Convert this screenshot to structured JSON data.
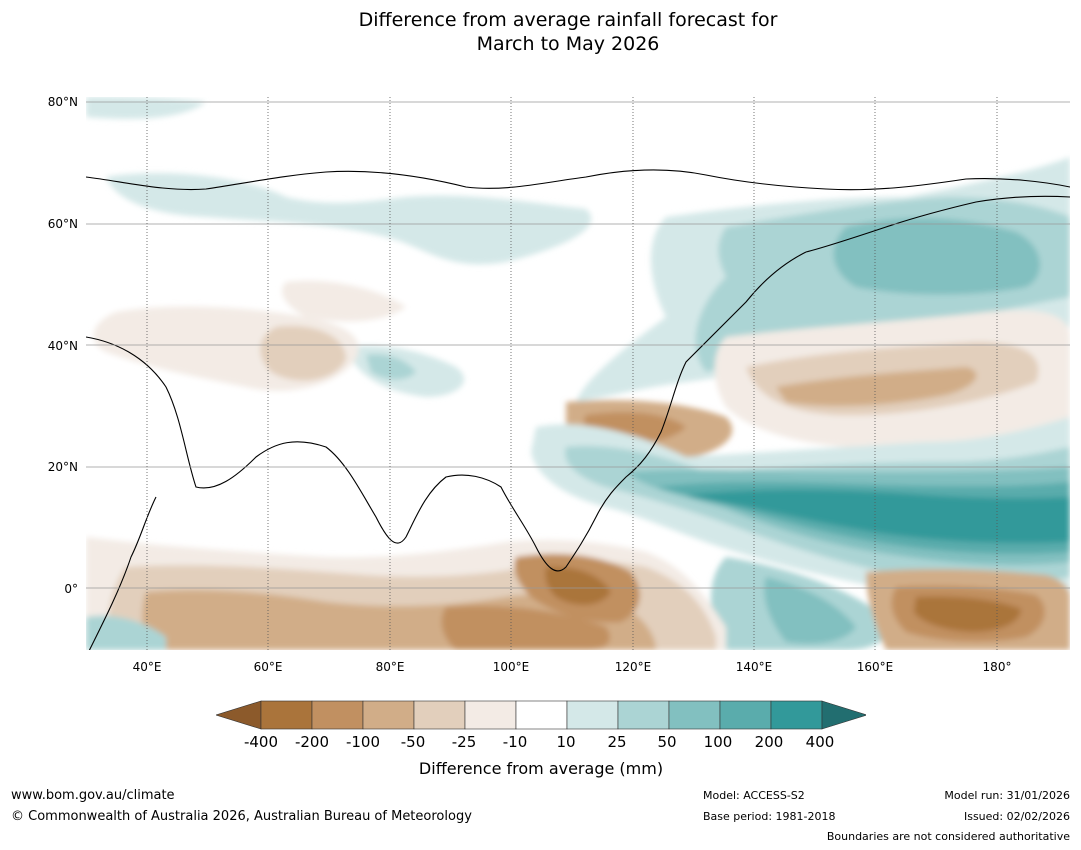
{
  "title": {
    "line1": "Difference from average rainfall forecast for",
    "line2": "March to May 2026"
  },
  "map": {
    "lat_labels": [
      "80°N",
      "60°N",
      "40°N",
      "20°N",
      "0°"
    ],
    "lon_labels": [
      "40°E",
      "60°E",
      "80°E",
      "100°E",
      "120°E",
      "140°E",
      "160°E",
      "180°"
    ],
    "lon_range": [
      30,
      192
    ],
    "lat_range": [
      -10,
      81
    ]
  },
  "legend": {
    "ticks": [
      "-400",
      "-200",
      "-100",
      "-50",
      "-25",
      "-10",
      "10",
      "25",
      "50",
      "100",
      "200",
      "400"
    ],
    "colors": {
      "below_min": "#8c5a2b",
      "bins": [
        "#aa743b",
        "#c19061",
        "#d1ad88",
        "#e2cfbc",
        "#f3ebe5",
        "#ffffff",
        "#d4e8e8",
        "#abd4d4",
        "#82c0c0",
        "#5aacac",
        "#32999a"
      ],
      "above_max": "#226e70"
    },
    "title": "Difference from average (mm)"
  },
  "footer": {
    "url": "www.bom.gov.au/climate",
    "copyright": "© Commonwealth of Australia 2026, Australian Bureau of Meteorology",
    "model": "Model: ACCESS-S2",
    "base_period": "Base period: 1981-2018",
    "model_run": "Model run: 31/01/2026",
    "issued": "Issued: 02/02/2026",
    "disclaimer": "Boundaries are not considered authoritative"
  }
}
